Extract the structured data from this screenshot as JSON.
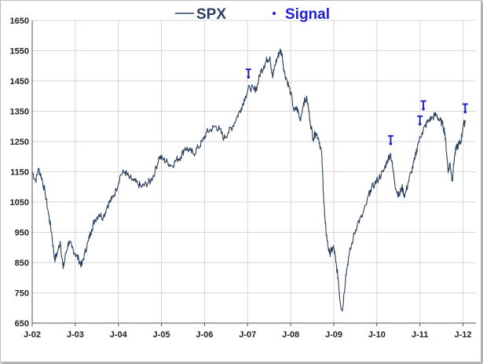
{
  "chart_data": {
    "type": "line",
    "xlim": [
      2002.0,
      2012.3
    ],
    "ylim": [
      650,
      1650
    ],
    "y_ticks": [
      650,
      750,
      850,
      950,
      1050,
      1150,
      1250,
      1350,
      1450,
      1550,
      1650
    ],
    "x_ticks": [
      {
        "label": "J-02",
        "x": 2002.0
      },
      {
        "label": "J-03",
        "x": 2003.0
      },
      {
        "label": "J-04",
        "x": 2004.0
      },
      {
        "label": "J-05",
        "x": 2005.0
      },
      {
        "label": "J-06",
        "x": 2006.0
      },
      {
        "label": "J-07",
        "x": 2007.0
      },
      {
        "label": "J-08",
        "x": 2008.0
      },
      {
        "label": "J-09",
        "x": 2009.0
      },
      {
        "label": "J-10",
        "x": 2010.0
      },
      {
        "label": "J-11",
        "x": 2011.0
      },
      {
        "label": "J-12",
        "x": 2012.0
      }
    ],
    "grid": true,
    "legend_position": "top-center",
    "colors": {
      "series": "#2a3f5f",
      "signal": "#1f1fd6",
      "grid": "#d6d6d6"
    },
    "series": [
      {
        "name": "SPX",
        "x": [
          2002.0,
          2002.08,
          2002.15,
          2002.22,
          2002.3,
          2002.38,
          2002.45,
          2002.52,
          2002.58,
          2002.65,
          2002.72,
          2002.78,
          2002.85,
          2002.92,
          2003.0,
          2003.08,
          2003.15,
          2003.22,
          2003.3,
          2003.38,
          2003.45,
          2003.55,
          2003.65,
          2003.75,
          2003.85,
          2003.95,
          2004.05,
          2004.15,
          2004.25,
          2004.35,
          2004.45,
          2004.55,
          2004.65,
          2004.75,
          2004.85,
          2004.95,
          2005.05,
          2005.15,
          2005.25,
          2005.35,
          2005.45,
          2005.55,
          2005.65,
          2005.75,
          2005.85,
          2005.95,
          2006.05,
          2006.15,
          2006.25,
          2006.35,
          2006.45,
          2006.55,
          2006.65,
          2006.75,
          2006.85,
          2006.95,
          2007.05,
          2007.15,
          2007.22,
          2007.3,
          2007.38,
          2007.45,
          2007.52,
          2007.58,
          2007.63,
          2007.7,
          2007.75,
          2007.8,
          2007.85,
          2007.92,
          2008.0,
          2008.08,
          2008.15,
          2008.22,
          2008.3,
          2008.38,
          2008.45,
          2008.52,
          2008.58,
          2008.65,
          2008.72,
          2008.76,
          2008.8,
          2008.85,
          2008.9,
          2008.95,
          2009.0,
          2009.05,
          2009.1,
          2009.15,
          2009.2,
          2009.28,
          2009.35,
          2009.45,
          2009.55,
          2009.65,
          2009.75,
          2009.85,
          2009.95,
          2010.05,
          2010.15,
          2010.25,
          2010.32,
          2010.38,
          2010.45,
          2010.52,
          2010.58,
          2010.65,
          2010.72,
          2010.8,
          2010.88,
          2010.95,
          2011.05,
          2011.12,
          2011.2,
          2011.3,
          2011.38,
          2011.45,
          2011.52,
          2011.58,
          2011.62,
          2011.66,
          2011.7,
          2011.75,
          2011.8,
          2011.85,
          2011.9,
          2011.95,
          2012.0,
          2012.06
        ],
        "y": [
          1150,
          1120,
          1160,
          1130,
          1080,
          1010,
          950,
          860,
          880,
          920,
          830,
          880,
          920,
          900,
          880,
          860,
          840,
          880,
          920,
          960,
          990,
          1010,
          1000,
          1040,
          1060,
          1090,
          1140,
          1150,
          1130,
          1120,
          1110,
          1100,
          1110,
          1120,
          1150,
          1200,
          1190,
          1180,
          1170,
          1190,
          1200,
          1230,
          1220,
          1210,
          1230,
          1250,
          1280,
          1290,
          1300,
          1290,
          1260,
          1280,
          1300,
          1330,
          1360,
          1400,
          1430,
          1420,
          1430,
          1480,
          1500,
          1520,
          1530,
          1460,
          1500,
          1530,
          1550,
          1540,
          1480,
          1450,
          1410,
          1350,
          1360,
          1320,
          1380,
          1390,
          1320,
          1260,
          1280,
          1260,
          1210,
          1080,
          980,
          920,
          880,
          890,
          900,
          850,
          800,
          720,
          690,
          810,
          870,
          930,
          980,
          1000,
          1040,
          1090,
          1110,
          1130,
          1150,
          1190,
          1210,
          1150,
          1090,
          1070,
          1100,
          1070,
          1110,
          1150,
          1190,
          1240,
          1280,
          1300,
          1320,
          1330,
          1340,
          1320,
          1310,
          1280,
          1210,
          1150,
          1180,
          1120,
          1200,
          1230,
          1240,
          1250,
          1300,
          1320
        ]
      }
    ],
    "signals": {
      "name": "Signal",
      "x": [
        2007.02,
        2010.32,
        2011.0,
        2011.08,
        2012.05
      ],
      "y": [
        1460,
        1240,
        1305,
        1355,
        1345
      ]
    }
  }
}
